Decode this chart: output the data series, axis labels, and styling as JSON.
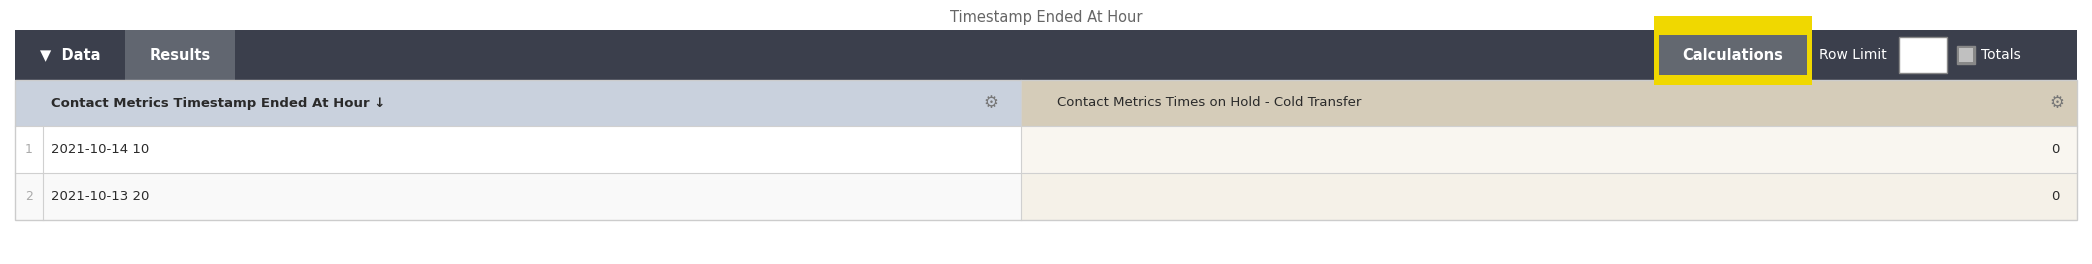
{
  "title": "Timestamp Ended At Hour",
  "title_color": "#666666",
  "title_fontsize": 10.5,
  "toolbar_bg": "#3b3f4c",
  "tab_data_text": "▼  Data",
  "tab_data_bg": "#3b3f4c",
  "tab_data_color": "#ffffff",
  "tab_results_text": "Results",
  "tab_results_bg": "#616670",
  "tab_results_color": "#ffffff",
  "calc_button_text": "Calculations",
  "calc_button_bg": "#636870",
  "calc_button_border": "#f0d800",
  "calc_button_color": "#ffffff",
  "row_limit_text": "Row Limit",
  "row_limit_color": "#ffffff",
  "totals_text": "Totals",
  "totals_color": "#ffffff",
  "col1_header": "Contact Metrics Timestamp Ended At Hour ↓",
  "col1_header_bg": "#c9d1dd",
  "col1_header_color": "#2a2a2a",
  "col2_header": "Contact Metrics Times on Hold - Cold Transfer",
  "col2_header_bg": "#d5ccb9",
  "col2_header_color": "#2a2a2a",
  "gear_color": "#777777",
  "row1_col1_bg": "#ffffff",
  "row1_col2_bg": "#f9f6f0",
  "row2_col1_bg": "#f9f9f9",
  "row2_col2_bg": "#f5f1e8",
  "row_num_color": "#aaaaaa",
  "row_text_color": "#2a2a2a",
  "rows": [
    {
      "num": "1",
      "col1": "2021-10-14 10",
      "col2": "0"
    },
    {
      "num": "2",
      "col1": "2021-10-13 20",
      "col2": "0"
    }
  ],
  "divider_color": "#d0d0d0",
  "outer_border_color": "#cccccc",
  "fig_bg": "#ffffff",
  "col_split": 0.488
}
